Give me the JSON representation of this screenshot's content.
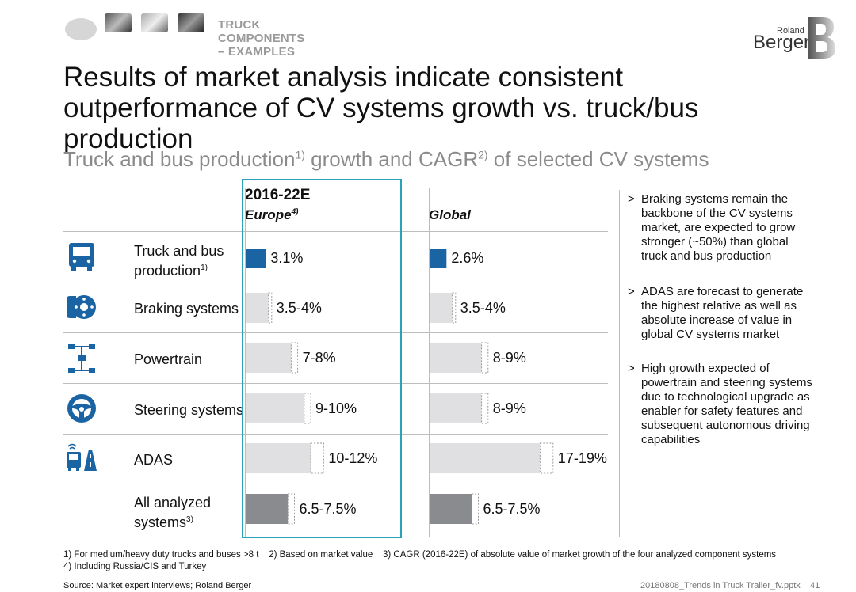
{
  "header": {
    "label": "TRUCK COMPONENTS – EXAMPLES",
    "logo_top": "Roland",
    "logo_bottom": "Berger"
  },
  "title": "Results of market analysis indicate consistent outperformance of CV systems growth vs. truck/bus production",
  "subtitle": {
    "text": "Truck and bus production",
    "sup1": "1)",
    "mid": " growth and CAGR",
    "sup2": "2)",
    "end": " of selected CV systems"
  },
  "period": "2016-22E",
  "columns": {
    "europe": "Europe",
    "europe_sup": "4)",
    "global": "Global"
  },
  "rows": [
    {
      "label": "Truck and bus",
      "label2": "production",
      "sup": "1)",
      "icon": "truck-icon"
    },
    {
      "label": "Braking systems",
      "icon": "brake-disc-icon"
    },
    {
      "label": "Powertrain",
      "icon": "powertrain-axle-icon"
    },
    {
      "label": "Steering systems",
      "icon": "steering-wheel-icon"
    },
    {
      "label": "ADAS",
      "icon": "adas-vehicle-road-icon"
    },
    {
      "label": "All analyzed",
      "label2": "systems",
      "sup": "3)"
    }
  ],
  "chart_data": {
    "type": "bar",
    "orientation": "horizontal",
    "categories": [
      "Truck and bus production",
      "Braking systems",
      "Powertrain",
      "Steering systems",
      "ADAS",
      "All analyzed systems"
    ],
    "series": [
      {
        "name": "Europe",
        "values": [
          [
            3.1,
            3.1
          ],
          [
            3.5,
            4
          ],
          [
            7,
            8
          ],
          [
            9,
            10
          ],
          [
            10,
            12
          ],
          [
            6.5,
            7.5
          ]
        ],
        "labels": [
          "3.1%",
          "3.5-4%",
          "7-8%",
          "9-10%",
          "10-12%",
          "6.5-7.5%"
        ]
      },
      {
        "name": "Global",
        "values": [
          [
            2.6,
            2.6
          ],
          [
            3.5,
            4
          ],
          [
            8,
            9
          ],
          [
            8,
            9
          ],
          [
            17,
            19
          ],
          [
            6.5,
            7.5
          ]
        ],
        "labels": [
          "2.6%",
          "3.5-4%",
          "8-9%",
          "8-9%",
          "17-19%",
          "6.5-7.5%"
        ]
      }
    ],
    "colors": {
      "production": "#1a64a3",
      "systems": "#e0e0e2",
      "total": "#8a8b8f",
      "highlight": "#2aa3b8"
    }
  },
  "bullets": [
    {
      "marker": ">",
      "text": "Braking systems remain the backbone of the CV systems market, are expected to grow stronger (~50%) than global truck and bus production"
    },
    {
      "marker": ">",
      "text": "ADAS are forecast to generate the highest relative as well as absolute increase of value in global CV systems market"
    },
    {
      "marker": ">",
      "text": "High growth expected of powertrain and steering systems due to technological upgrade as enabler for safety features and subsequent autonomous driving capabilities"
    }
  ],
  "footnotes": {
    "line1": "1) For medium/heavy duty trucks and buses >8 t    2) Based on market value    3) CAGR (2016-22E) of absolute value of market growth of the four analyzed component systems",
    "line2": "4) Including Russia/CIS and Turkey"
  },
  "source": "Source: Market expert interviews; Roland Berger",
  "file_ref": "20180808_Trends in Truck Trailer_fv.pptx",
  "page_number": "41"
}
